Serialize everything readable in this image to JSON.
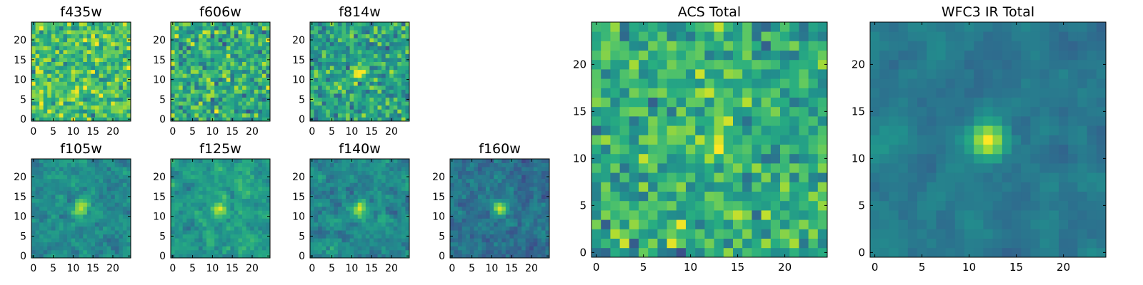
{
  "chart_data": {
    "type": "heatmap",
    "colormap": "viridis",
    "grid_size": 25,
    "panels": [
      {
        "title": "f435w",
        "xticks": [
          0,
          5,
          10,
          15,
          20
        ],
        "yticks": [
          0,
          5,
          10,
          15,
          20
        ],
        "xlim": [
          0,
          24
        ],
        "ylim": [
          0,
          24
        ],
        "source": {
          "seed": 11,
          "profile": "noise",
          "amp": 0.0,
          "smooth": 0,
          "base": 0.7,
          "spread": 0.17
        }
      },
      {
        "title": "f606w",
        "xticks": [
          0,
          5,
          10,
          15,
          20
        ],
        "yticks": [
          0,
          5,
          10,
          15,
          20
        ],
        "xlim": [
          0,
          24
        ],
        "ylim": [
          0,
          24
        ],
        "source": {
          "seed": 23,
          "profile": "noise",
          "amp": 0.0,
          "smooth": 0,
          "base": 0.62,
          "spread": 0.18
        }
      },
      {
        "title": "f814w",
        "xticks": [
          0,
          5,
          10,
          15,
          20
        ],
        "yticks": [
          0,
          5,
          10,
          15,
          20
        ],
        "xlim": [
          0,
          24
        ],
        "ylim": [
          0,
          24
        ],
        "source": {
          "seed": 37,
          "profile": "source",
          "amp": 0.35,
          "smooth": 0,
          "base": 0.58,
          "spread": 0.16
        }
      },
      {
        "title": "f105w",
        "xticks": [
          0,
          5,
          10,
          15,
          20
        ],
        "yticks": [
          0,
          5,
          10,
          15,
          20
        ],
        "xlim": [
          0,
          24
        ],
        "ylim": [
          0,
          24
        ],
        "source": {
          "seed": 41,
          "profile": "source",
          "amp": 0.55,
          "smooth": 1,
          "base": 0.48,
          "spread": 0.14
        }
      },
      {
        "title": "f125w",
        "xticks": [
          0,
          5,
          10,
          15,
          20
        ],
        "yticks": [
          0,
          5,
          10,
          15,
          20
        ],
        "xlim": [
          0,
          24
        ],
        "ylim": [
          0,
          24
        ],
        "source": {
          "seed": 53,
          "profile": "source",
          "amp": 0.45,
          "smooth": 1,
          "base": 0.55,
          "spread": 0.15
        }
      },
      {
        "title": "f140w",
        "xticks": [
          0,
          5,
          10,
          15,
          20
        ],
        "yticks": [
          0,
          5,
          10,
          15,
          20
        ],
        "xlim": [
          0,
          24
        ],
        "ylim": [
          0,
          24
        ],
        "source": {
          "seed": 67,
          "profile": "source",
          "amp": 0.55,
          "smooth": 1,
          "base": 0.48,
          "spread": 0.15
        }
      },
      {
        "title": "f160w",
        "xticks": [
          0,
          5,
          10,
          15,
          20
        ],
        "yticks": [
          0,
          5,
          10,
          15,
          20
        ],
        "xlim": [
          0,
          24
        ],
        "ylim": [
          0,
          24
        ],
        "source": {
          "seed": 79,
          "profile": "source",
          "amp": 0.55,
          "smooth": 1,
          "base": 0.38,
          "spread": 0.14
        }
      },
      {
        "title": "ACS Total",
        "xticks": [
          0,
          5,
          10,
          15,
          20
        ],
        "yticks": [
          0,
          5,
          10,
          15,
          20
        ],
        "xlim": [
          0,
          24
        ],
        "ylim": [
          0,
          24
        ],
        "source": {
          "seed": 97,
          "profile": "source",
          "amp": 0.28,
          "smooth": 0,
          "base": 0.62,
          "spread": 0.16
        }
      },
      {
        "title": "WFC3 IR Total",
        "xticks": [
          0,
          5,
          10,
          15,
          20
        ],
        "yticks": [
          0,
          5,
          10,
          15,
          20
        ],
        "xlim": [
          0,
          24
        ],
        "ylim": [
          0,
          24
        ],
        "source": {
          "seed": 101,
          "profile": "source",
          "amp": 0.6,
          "smooth": 2,
          "base": 0.42,
          "spread": 0.12
        }
      }
    ]
  }
}
